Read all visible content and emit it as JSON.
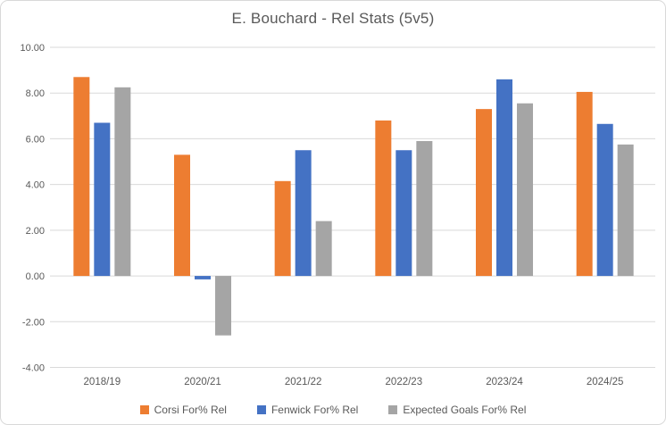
{
  "chart_data": {
    "type": "bar",
    "title": "E. Bouchard - Rel Stats (5v5)",
    "categories": [
      "2018/19",
      "2020/21",
      "2021/22",
      "2022/23",
      "2023/24",
      "2024/25"
    ],
    "series": [
      {
        "name": "Corsi For% Rel",
        "color": "#ED7D31",
        "values": [
          8.7,
          5.3,
          4.15,
          6.8,
          7.3,
          8.05
        ]
      },
      {
        "name": "Fenwick For% Rel",
        "color": "#4472C4",
        "values": [
          6.7,
          -0.15,
          5.5,
          5.5,
          8.6,
          6.65
        ]
      },
      {
        "name": "Expected Goals For% Rel",
        "color": "#A5A5A5",
        "values": [
          8.25,
          -2.6,
          2.4,
          5.9,
          7.55,
          5.75
        ]
      }
    ],
    "y_axis": {
      "min": -4,
      "max": 10,
      "step": 2,
      "tick_labels": [
        "10.00",
        "8.00",
        "6.00",
        "4.00",
        "2.00",
        "0.00",
        "-2.00",
        "-4.00"
      ]
    },
    "xlabel": "",
    "ylabel": "",
    "grid": true,
    "legend_position": "bottom",
    "colors": {
      "text": "#595959",
      "gridline": "#D9D9D9",
      "border": "#D9D9D9",
      "background": "#FFFFFF"
    }
  }
}
